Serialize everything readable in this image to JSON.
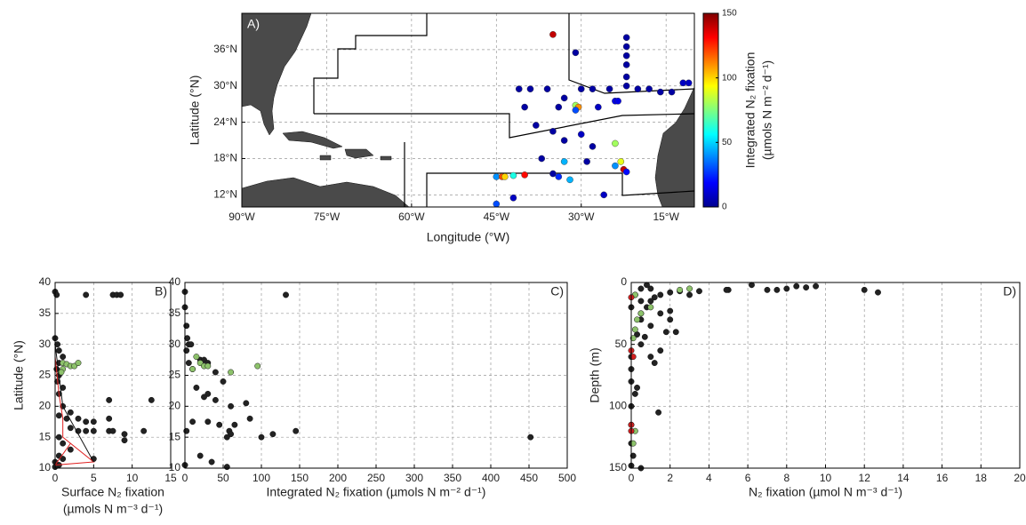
{
  "chart_data": [
    {
      "type": "map",
      "annotation": "A)",
      "xlabel": "Longitude (°W)",
      "ylabel": "Latitude (°N)",
      "xlim": [
        -90,
        -10
      ],
      "ylim": [
        10,
        42
      ],
      "grid": true,
      "xticks": [
        {
          "value": -90,
          "label": "90°W"
        },
        {
          "value": -75,
          "label": "75°W"
        },
        {
          "value": -60,
          "label": "60°W"
        },
        {
          "value": -45,
          "label": "45°W"
        },
        {
          "value": -30,
          "label": "30°W"
        },
        {
          "value": -15,
          "label": "15°W"
        }
      ],
      "yticks": [
        {
          "value": 12,
          "label": "12°N"
        },
        {
          "value": 18,
          "label": "18°N"
        },
        {
          "value": 24,
          "label": "24°N"
        },
        {
          "value": 30,
          "label": "30°N"
        },
        {
          "value": 36,
          "label": "36°N"
        }
      ],
      "colormap": "jet",
      "colorbar": {
        "lim": [
          0,
          150
        ],
        "ticks": [
          0,
          50,
          100,
          150
        ],
        "label": [
          "Integrated N₂ fixation",
          "(µmols N m⁻² d⁻¹)"
        ]
      },
      "series": [
        {
          "x": [
            -35,
            -31,
            -22,
            -22,
            -22,
            -22,
            -22,
            -22,
            -12,
            -11,
            -41,
            -39,
            -36,
            -33,
            -30,
            -28,
            -25,
            -20,
            -18,
            -16,
            -14,
            -40,
            -34,
            -31,
            -30.5,
            -31,
            -27,
            -24,
            -23.5,
            -38,
            -35,
            -33,
            -30,
            -28,
            -24,
            -37,
            -33,
            -29,
            -24,
            -23,
            -22.5,
            -22,
            -45,
            -44,
            -43.5,
            -42,
            -40,
            -34,
            -32,
            -26,
            -45,
            -42,
            -35
          ],
          "y": [
            38.5,
            35.5,
            38,
            36.5,
            35,
            33.5,
            31.5,
            30,
            30.5,
            30.5,
            29.5,
            29.5,
            29.5,
            28,
            29.5,
            29.5,
            29.5,
            29.5,
            29.5,
            29,
            29,
            26.5,
            26.5,
            26.8,
            26.5,
            26,
            26.5,
            27.5,
            27.5,
            23.5,
            22.5,
            21,
            22,
            20,
            20.5,
            18,
            17.5,
            17.5,
            16.8,
            17.5,
            16.2,
            15.8,
            15,
            15,
            15,
            15.2,
            15.3,
            15,
            14.5,
            12,
            10.5,
            11.5,
            15.5
          ],
          "values": [
            140,
            5,
            5,
            5,
            5,
            5,
            5,
            5,
            10,
            10,
            5,
            5,
            5,
            5,
            5,
            5,
            5,
            5,
            5,
            5,
            5,
            5,
            5,
            80,
            110,
            30,
            10,
            15,
            15,
            5,
            5,
            5,
            10,
            5,
            80,
            5,
            45,
            5,
            40,
            90,
            140,
            20,
            40,
            120,
            100,
            60,
            130,
            25,
            45,
            10,
            30,
            10,
            5
          ]
        }
      ]
    },
    {
      "type": "scatter",
      "annotation": "B)",
      "xlabel": [
        "Surface N₂ fixation",
        "(µmols N m⁻³ d⁻¹)"
      ],
      "ylabel": "Latitude (°N)",
      "xlim": [
        0,
        15
      ],
      "ylim": [
        10,
        40
      ],
      "xticks": [
        0,
        5,
        10,
        15
      ],
      "yticks": [
        10,
        15,
        20,
        25,
        30,
        35,
        40
      ],
      "grid": true,
      "series": [
        {
          "color": "#222222",
          "x": [
            0,
            0.2,
            4,
            7.5,
            8,
            8.5,
            0,
            0.3,
            0.5,
            1,
            0.5,
            0.2,
            0.5,
            0.3,
            1,
            0.5,
            7,
            12.5,
            1,
            2,
            0.5,
            1.5,
            3,
            7,
            4,
            5,
            2,
            3,
            4,
            5,
            7,
            7.5,
            11.5,
            9,
            9,
            0.5,
            1,
            2,
            0.5,
            1,
            5,
            0,
            0.5,
            0
          ],
          "y": [
            38.5,
            38,
            38,
            38,
            38,
            38,
            31,
            30,
            29,
            28,
            27,
            26,
            25,
            24,
            23,
            22,
            21,
            21,
            20,
            19,
            18.5,
            18,
            18,
            18,
            17.5,
            17.5,
            16.5,
            16,
            16,
            16,
            16,
            16,
            16,
            15.5,
            14.5,
            15,
            14,
            13,
            12,
            11.5,
            11.5,
            11,
            10.5,
            10.2
          ]
        },
        {
          "color": "#8dc26b",
          "x": [
            1,
            1.5,
            2,
            2.5,
            3,
            1,
            0.8
          ],
          "y": [
            27,
            26.8,
            26.5,
            26.5,
            27,
            26,
            25.5
          ]
        },
        {
          "color": "#e02020",
          "kind": "line",
          "x": [
            0,
            0.5,
            1,
            1,
            5,
            0,
            2
          ],
          "y": [
            28,
            22,
            18,
            15,
            11,
            10.5,
            14
          ]
        },
        {
          "color": "#111111",
          "kind": "line",
          "x": [
            0,
            0.5,
            1,
            5
          ],
          "y": [
            30,
            25,
            20,
            11
          ]
        }
      ]
    },
    {
      "type": "scatter",
      "annotation": "C)",
      "xlabel": "Integrated N₂ fixation (µmols N m⁻² d⁻¹)",
      "xlim": [
        0,
        500
      ],
      "ylim": [
        10,
        40
      ],
      "xticks": [
        0,
        50,
        100,
        150,
        200,
        250,
        300,
        350,
        400,
        450,
        500
      ],
      "yticks": [
        10,
        15,
        20,
        25,
        30,
        35,
        40
      ],
      "grid": true,
      "series": [
        {
          "color": "#222222",
          "x": [
            0,
            132,
            0,
            2,
            3,
            5,
            8,
            2,
            20,
            25,
            30,
            5,
            10,
            40,
            50,
            15,
            30,
            25,
            40,
            60,
            80,
            85,
            30,
            10,
            45,
            65,
            58,
            2,
            60,
            55,
            100,
            115,
            145,
            452,
            20,
            35,
            55,
            0
          ],
          "y": [
            38.5,
            38,
            36,
            33,
            31,
            30,
            30,
            29,
            27.5,
            27.5,
            27,
            27,
            26,
            25.5,
            24,
            23,
            22,
            21.5,
            21,
            20,
            20.5,
            18,
            17.5,
            17.5,
            17,
            17,
            16,
            16,
            15.5,
            15,
            15,
            15.5,
            16,
            15,
            12,
            11,
            10.2,
            10.5
          ]
        },
        {
          "color": "#8dc26b",
          "x": [
            15,
            20,
            25,
            30,
            60,
            95,
            10
          ],
          "y": [
            28,
            27,
            26.5,
            26.5,
            25.5,
            26.5,
            26
          ]
        }
      ]
    },
    {
      "type": "scatter",
      "annotation": "D)",
      "xlabel": "N₂ fixation (µmol N m⁻³ d⁻¹)",
      "ylabel": "Depth (m)",
      "xlim": [
        0,
        20
      ],
      "ylim": [
        0,
        150
      ],
      "y_inverted": true,
      "xticks": [
        0,
        2,
        4,
        6,
        8,
        10,
        12,
        14,
        16,
        18,
        20
      ],
      "yticks": [
        0,
        50,
        100,
        150
      ],
      "grid": true,
      "series": [
        {
          "color": "#222222",
          "x": [
            12,
            12.7,
            9.5,
            9,
            8.5,
            8,
            7.5,
            7,
            6.2,
            5,
            4.9,
            3.5,
            3,
            2.5,
            2,
            1.5,
            1.2,
            1,
            0.8,
            2,
            1.5,
            2,
            2.3,
            1.8,
            1,
            0.5,
            0,
            0.2,
            0.5,
            1,
            1.5,
            1,
            1.2,
            0.5,
            0,
            0,
            0.2,
            0,
            1.4,
            0,
            0,
            0.1,
            0,
            0.5,
            0.3,
            0.7,
            0,
            0.3,
            0.8,
            0.5,
            0.5
          ],
          "y": [
            6,
            8,
            3,
            4,
            3,
            5,
            6,
            6,
            2,
            6,
            6,
            7,
            10,
            7,
            8,
            10,
            12,
            15,
            20,
            23,
            25,
            30,
            40,
            40,
            35,
            30,
            20,
            10,
            5,
            5,
            55,
            60,
            65,
            50,
            70,
            80,
            90,
            100,
            105,
            115,
            130,
            140,
            148,
            150,
            42,
            44,
            60,
            85,
            2,
            15,
            25
          ]
        },
        {
          "color": "#8dc26b",
          "x": [
            3,
            2.5,
            0.5,
            0.3,
            0.2,
            0.1,
            0.2,
            0.1,
            0.2,
            1
          ],
          "y": [
            5,
            6,
            25,
            30,
            38,
            45,
            120,
            130,
            10,
            20
          ]
        },
        {
          "color": "#d42020",
          "x": [
            0,
            0,
            0,
            0,
            0.1
          ],
          "y": [
            12,
            55,
            115,
            120,
            60
          ]
        }
      ]
    }
  ]
}
